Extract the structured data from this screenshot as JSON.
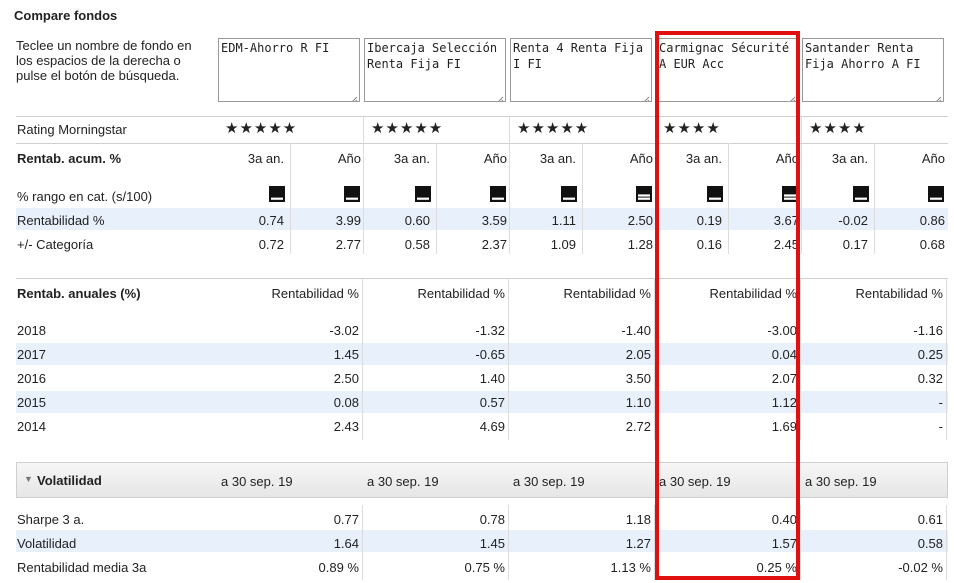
{
  "title": "Compare fondos",
  "intro": "Teclee un nombre de fondo en los espacios de la derecha o pulse el botón de búsqueda.",
  "funds": [
    {
      "name": "EDM-Ahorro R FI",
      "stars": "★★★★★"
    },
    {
      "name": "Ibercaja Selección Renta Fija FI",
      "stars": "★★★★★"
    },
    {
      "name": "Renta 4 Renta Fija I FI",
      "stars": "★★★★★"
    },
    {
      "name": "Carmignac Sécurité A EUR Acc",
      "stars": "★★★★"
    },
    {
      "name": "Santander Renta Fija Ahorro A FI",
      "stars": "★★★★"
    }
  ],
  "rating_label": "Rating Morningstar",
  "acum": {
    "heading": "Rentab. acum. %",
    "col_3a": "3a an.",
    "col_ano": "Año",
    "rank_label": "% rango en cat. (s/100)",
    "rent_label": "Rentabilidad %",
    "cat_label": "+/- Categoría",
    "rank_fill": [
      0.75,
      0.75,
      0.75,
      0.75,
      0.75,
      0.5,
      0.75,
      0.5,
      0.75,
      0.75
    ],
    "rent": [
      [
        "0.74",
        "3.99"
      ],
      [
        "0.60",
        "3.59"
      ],
      [
        "1.11",
        "2.50"
      ],
      [
        "0.19",
        "3.67"
      ],
      [
        "-0.02",
        "0.86"
      ]
    ],
    "cat": [
      [
        "0.72",
        "2.77"
      ],
      [
        "0.58",
        "2.37"
      ],
      [
        "1.09",
        "1.28"
      ],
      [
        "0.16",
        "2.45"
      ],
      [
        "0.17",
        "0.68"
      ]
    ]
  },
  "anuales": {
    "heading": "Rentab. anuales (%)",
    "col_label": "Rentabilidad %",
    "years": [
      {
        "year": "2018",
        "values": [
          "-3.02",
          "-1.32",
          "-1.40",
          "-3.00",
          "-1.16"
        ]
      },
      {
        "year": "2017",
        "values": [
          "1.45",
          "-0.65",
          "2.05",
          "0.04",
          "0.25"
        ]
      },
      {
        "year": "2016",
        "values": [
          "2.50",
          "1.40",
          "3.50",
          "2.07",
          "0.32"
        ]
      },
      {
        "year": "2015",
        "values": [
          "0.08",
          "0.57",
          "1.10",
          "1.12",
          "-"
        ]
      },
      {
        "year": "2014",
        "values": [
          "2.43",
          "4.69",
          "2.72",
          "1.69",
          "-"
        ]
      }
    ]
  },
  "volatilidad": {
    "heading": "Volatilidad",
    "date": "a 30 sep. 19",
    "rows": [
      {
        "label": "Sharpe 3 a.",
        "values": [
          "0.77",
          "0.78",
          "1.18",
          "0.40",
          "0.61"
        ]
      },
      {
        "label": "Volatilidad",
        "values": [
          "1.64",
          "1.45",
          "1.27",
          "1.57",
          "0.58"
        ]
      },
      {
        "label": "Rentabilidad media 3a",
        "values": [
          "0.89 %",
          "0.75 %",
          "1.13 %",
          "0.25 %",
          "-0.02 %"
        ]
      }
    ]
  },
  "colors": {
    "highlight": "#e01010",
    "row_alt": "#e8f0fb"
  }
}
